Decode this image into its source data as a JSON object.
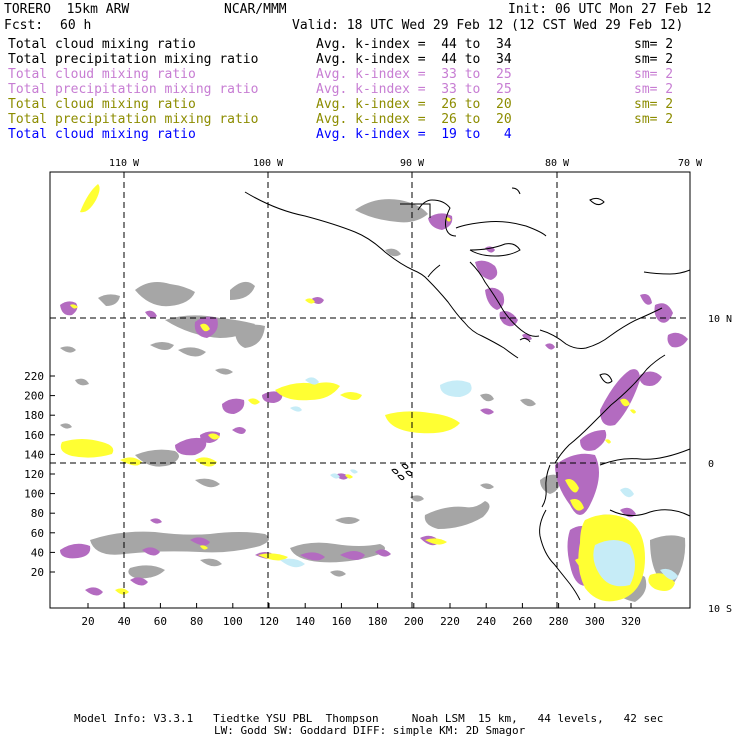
{
  "header": {
    "model": "TORERO  15km ARW",
    "org": "NCAR/MMM",
    "init": "Init: 06 UTC Mon 27 Feb 12",
    "fcst_label": "Fcst:",
    "fcst_value": "60 h",
    "valid": "Valid: 18 UTC Wed 29 Feb 12 (12 CST Wed 29 Feb 12)"
  },
  "legend": [
    {
      "field": "Total cloud mixing ratio",
      "kindex": "Avg. k-index =  44 to  34",
      "sm": "sm= 2",
      "color": "#000000"
    },
    {
      "field": "Total precipitation mixing ratio",
      "kindex": "Avg. k-index =  44 to  34",
      "sm": "sm= 2",
      "color": "#000000"
    },
    {
      "field": "Total cloud mixing ratio",
      "kindex": "Avg. k-index =  33 to  25",
      "sm": "sm= 2",
      "color": "#c77dd3"
    },
    {
      "field": "Total precipitation mixing ratio",
      "kindex": "Avg. k-index =  33 to  25",
      "sm": "sm= 2",
      "color": "#c77dd3"
    },
    {
      "field": "Total cloud mixing ratio",
      "kindex": "Avg. k-index =  26 to  20",
      "sm": "sm= 2",
      "color": "#8c8c00"
    },
    {
      "field": "Total precipitation mixing ratio",
      "kindex": "Avg. k-index =  26 to  20",
      "sm": "sm= 2",
      "color": "#8c8c00"
    },
    {
      "field": "Total cloud mixing ratio",
      "kindex": "Avg. k-index =  19 to   4",
      "sm": "",
      "color": "#0000ff"
    }
  ],
  "map": {
    "lon_labels": [
      "110 W",
      "100 W",
      "90 W",
      "80 W",
      "70 W"
    ],
    "lat_labels": [
      "10 N",
      "0",
      "10 S"
    ],
    "x_ticks": [
      "20",
      "40",
      "60",
      "80",
      "100",
      "120",
      "140",
      "160",
      "180",
      "200",
      "220",
      "240",
      "260",
      "280",
      "300",
      "320"
    ],
    "y_ticks": [
      "20",
      "40",
      "60",
      "80",
      "100",
      "120",
      "140",
      "160",
      "180",
      "200",
      "220"
    ],
    "colors": {
      "gray": "#a0a0a0",
      "purple": "#b36bc0",
      "yellow": "#ffff33",
      "lightblue": "#c6ecf7",
      "frame": "#000000"
    }
  },
  "footer": {
    "line1": "Model Info: V3.3.1   Tiedtke YSU PBL  Thompson     Noah LSM  15 km,   44 levels,   42 sec",
    "line2": "LW: Godd SW: Goddard DIFF: simple KM: 2D Smagor"
  }
}
